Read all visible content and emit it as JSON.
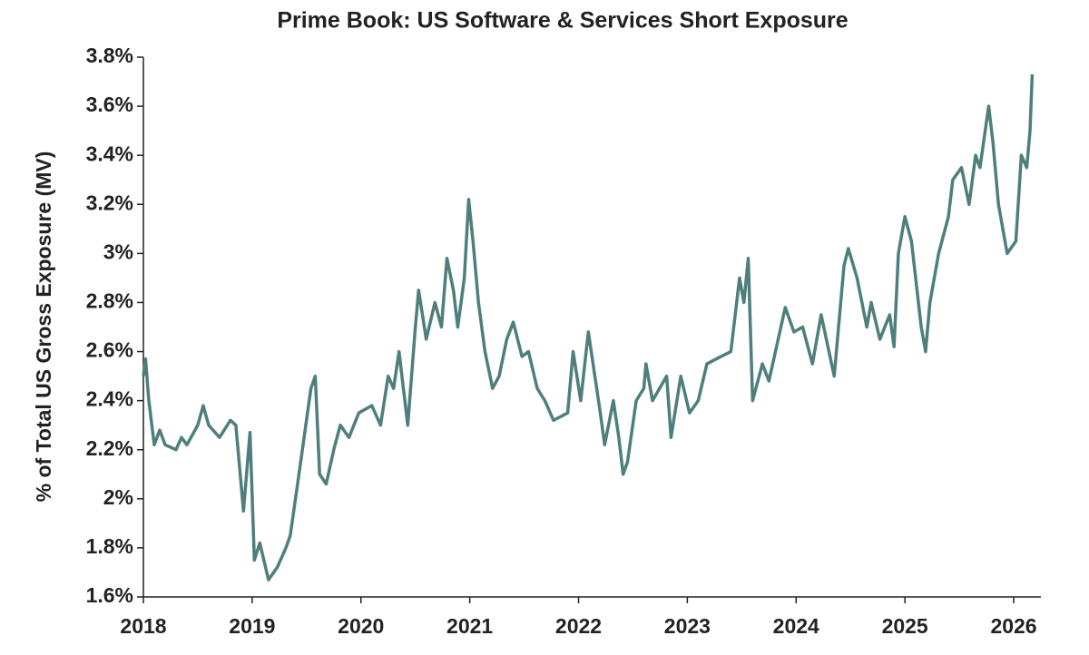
{
  "chart_data": {
    "type": "line",
    "title": "Prime Book: US Software & Services Short Exposure",
    "y_label": "% of Total US Gross Exposure (MV)",
    "xlim": [
      2018,
      2026.25
    ],
    "xticks": [
      2018,
      2019,
      2020,
      2021,
      2022,
      2023,
      2024,
      2025,
      2026
    ],
    "ylim": [
      1.6,
      3.8
    ],
    "yticks": [
      {
        "value": 1.6,
        "label": "1.6%"
      },
      {
        "value": 1.8,
        "label": "1.8%"
      },
      {
        "value": 2,
        "label": "2%"
      },
      {
        "value": 2.2,
        "label": "2.2%"
      },
      {
        "value": 2.4,
        "label": "2.4%"
      },
      {
        "value": 2.6,
        "label": "2.6%"
      },
      {
        "value": 2.8,
        "label": "2.8%"
      },
      {
        "value": 3,
        "label": "3%"
      },
      {
        "value": 3.2,
        "label": "3.2%"
      },
      {
        "value": 3.4,
        "label": "3.4%"
      },
      {
        "value": 3.6,
        "label": "3.6%"
      },
      {
        "value": 3.8,
        "label": "3.8%"
      }
    ],
    "grid": false,
    "series": [
      {
        "color": "#4f7f7c",
        "x": [
          2018.0,
          2018.02,
          2018.05,
          2018.1,
          2018.15,
          2018.2,
          2018.3,
          2018.35,
          2018.4,
          2018.5,
          2018.55,
          2018.6,
          2018.7,
          2018.8,
          2018.85,
          2018.92,
          2018.98,
          2019.02,
          2019.07,
          2019.15,
          2019.23,
          2019.31,
          2019.35,
          2019.43,
          2019.54,
          2019.58,
          2019.62,
          2019.68,
          2019.75,
          2019.81,
          2019.89,
          2019.98,
          2020.1,
          2020.18,
          2020.25,
          2020.3,
          2020.35,
          2020.43,
          2020.5,
          2020.53,
          2020.6,
          2020.68,
          2020.74,
          2020.79,
          2020.85,
          2020.89,
          2020.95,
          2020.99,
          2021.03,
          2021.08,
          2021.14,
          2021.21,
          2021.27,
          2021.34,
          2021.4,
          2021.48,
          2021.54,
          2021.62,
          2021.69,
          2021.77,
          2021.9,
          2021.95,
          2022.02,
          2022.09,
          2022.15,
          2022.2,
          2022.24,
          2022.32,
          2022.37,
          2022.41,
          2022.45,
          2022.53,
          2022.6,
          2022.62,
          2022.68,
          2022.81,
          2022.85,
          2022.94,
          2023.02,
          2023.1,
          2023.18,
          2023.31,
          2023.4,
          2023.48,
          2023.52,
          2023.56,
          2023.6,
          2023.69,
          2023.75,
          2023.81,
          2023.9,
          2023.98,
          2024.06,
          2024.15,
          2024.23,
          2024.35,
          2024.44,
          2024.48,
          2024.56,
          2024.65,
          2024.69,
          2024.77,
          2024.86,
          2024.9,
          2024.94,
          2025.0,
          2025.06,
          2025.15,
          2025.19,
          2025.23,
          2025.31,
          2025.4,
          2025.44,
          2025.52,
          2025.59,
          2025.65,
          2025.69,
          2025.77,
          2025.81,
          2025.86,
          2025.94,
          2026.02,
          2026.07,
          2026.12,
          2026.15,
          2026.17
        ],
        "values": [
          2.5,
          2.57,
          2.4,
          2.22,
          2.28,
          2.22,
          2.2,
          2.25,
          2.22,
          2.3,
          2.38,
          2.3,
          2.25,
          2.32,
          2.3,
          1.95,
          2.27,
          1.75,
          1.82,
          1.67,
          1.72,
          1.8,
          1.85,
          2.1,
          2.45,
          2.5,
          2.1,
          2.06,
          2.2,
          2.3,
          2.25,
          2.35,
          2.38,
          2.3,
          2.5,
          2.45,
          2.6,
          2.3,
          2.7,
          2.85,
          2.65,
          2.8,
          2.7,
          2.98,
          2.85,
          2.7,
          2.9,
          3.22,
          3.05,
          2.8,
          2.6,
          2.45,
          2.5,
          2.65,
          2.72,
          2.58,
          2.6,
          2.45,
          2.4,
          2.32,
          2.35,
          2.6,
          2.4,
          2.68,
          2.5,
          2.35,
          2.22,
          2.4,
          2.25,
          2.1,
          2.15,
          2.4,
          2.45,
          2.55,
          2.4,
          2.5,
          2.25,
          2.5,
          2.35,
          2.4,
          2.55,
          2.58,
          2.6,
          2.9,
          2.8,
          2.98,
          2.4,
          2.55,
          2.48,
          2.6,
          2.78,
          2.68,
          2.7,
          2.55,
          2.75,
          2.5,
          2.95,
          3.02,
          2.9,
          2.7,
          2.8,
          2.65,
          2.75,
          2.62,
          3.0,
          3.15,
          3.05,
          2.7,
          2.6,
          2.8,
          3.0,
          3.15,
          3.3,
          3.35,
          3.2,
          3.4,
          3.35,
          3.6,
          3.45,
          3.2,
          3.0,
          3.05,
          3.4,
          3.35,
          3.5,
          3.73
        ]
      }
    ]
  }
}
